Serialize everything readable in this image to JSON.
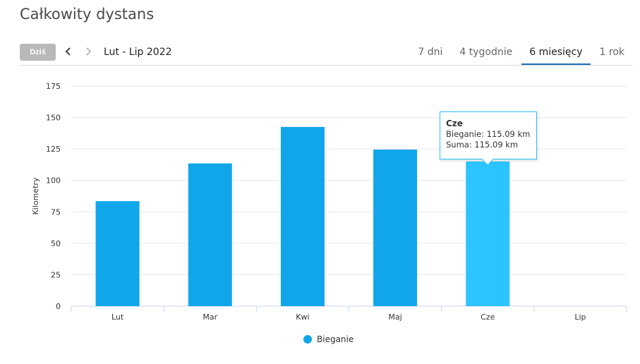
{
  "page": {
    "title": "Całkowity dystans"
  },
  "toolbar": {
    "today_label": "Dziś",
    "prev_icon": "chevron-left-icon",
    "next_icon": "chevron-right-icon",
    "range_label": "Lut - Lip 2022",
    "tabs": [
      {
        "label": "7 dni",
        "active": false
      },
      {
        "label": "4 tygodnie",
        "active": false
      },
      {
        "label": "6 miesięcy",
        "active": true
      },
      {
        "label": "1 rok",
        "active": false
      }
    ]
  },
  "chart_data": {
    "type": "bar",
    "categories": [
      "Lut",
      "Mar",
      "Kwi",
      "Maj",
      "Cze",
      "Lip"
    ],
    "series": [
      {
        "name": "Bieganie",
        "values": [
          83.5,
          113.5,
          142.5,
          124.5,
          115.09,
          0
        ],
        "color": "#11a6e9"
      }
    ],
    "ylabel": "Kilometry",
    "yticks": [
      0,
      25,
      50,
      75,
      100,
      125,
      150,
      175
    ],
    "ylim": [
      0,
      175
    ],
    "grid": true,
    "legend": "bottom-center",
    "highlight_index": 4,
    "highlight_color": "#2cc3ff",
    "tooltip": {
      "title": "Cze",
      "line1": "Bieganie: 115.09 km",
      "line2": "Suma: 115.09 km"
    }
  }
}
